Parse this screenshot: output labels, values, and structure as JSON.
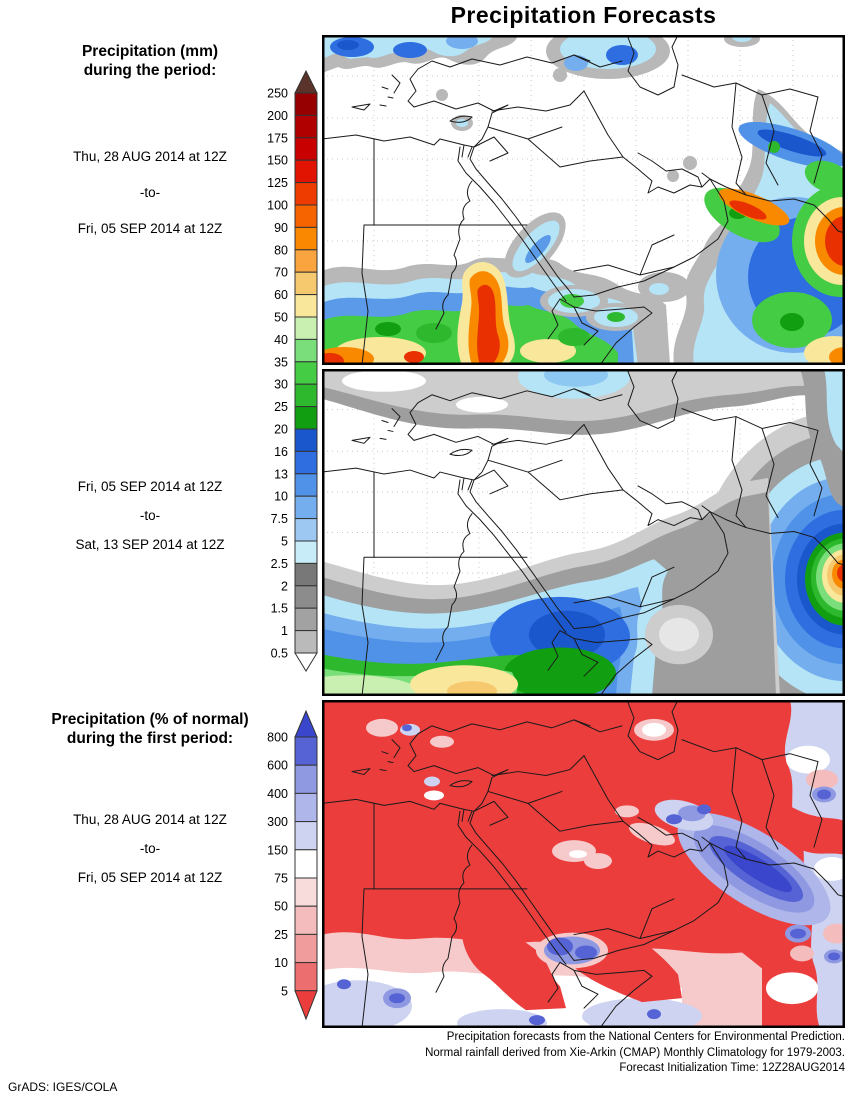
{
  "title": "Precipitation Forecasts",
  "panel_mm": {
    "heading_line1": "Precipitation (mm)",
    "heading_line2": "during the period:",
    "period1": {
      "start": "Thu, 28 AUG 2014 at 12Z",
      "sep": "-to-",
      "end": "Fri, 05 SEP 2014 at 12Z"
    },
    "period2": {
      "start": "Fri, 05 SEP 2014 at 12Z",
      "sep": "-to-",
      "end": "Sat, 13 SEP 2014 at 12Z"
    }
  },
  "panel_pct": {
    "heading_line1": "Precipitation (% of normal)",
    "heading_line2": "during the first period:",
    "period": {
      "start": "Thu, 28 AUG 2014 at 12Z",
      "sep": "-to-",
      "end": "Fri, 05 SEP 2014 at 12Z"
    }
  },
  "legend_mm": {
    "labels": [
      "250",
      "200",
      "175",
      "150",
      "125",
      "100",
      "90",
      "80",
      "70",
      "60",
      "50",
      "40",
      "35",
      "30",
      "25",
      "20",
      "16",
      "13",
      "10",
      "7.5",
      "5",
      "2.5",
      "2",
      "1.5",
      "1",
      "0.5"
    ],
    "colors": [
      "#960000",
      "#b00000",
      "#c80000",
      "#e01400",
      "#ee3c00",
      "#f66400",
      "#fa8800",
      "#f9a43e",
      "#f7c96e",
      "#f9e79b",
      "#c9f0b0",
      "#7ade7a",
      "#44cc44",
      "#2db82d",
      "#119f11",
      "#1a56cc",
      "#2e6ee0",
      "#4f92e8",
      "#74aeee",
      "#9cc8f2",
      "#c8ecf8",
      "#787878",
      "#8c8c8c",
      "#a2a2a2",
      "#bababa"
    ],
    "arrow_top_color": "#5a332b",
    "arrow_bottom_color": "#ffffff"
  },
  "legend_pct": {
    "labels": [
      "800",
      "600",
      "400",
      "300",
      "150",
      "75",
      "50",
      "25",
      "10",
      "5"
    ],
    "colors": [
      "#5663d4",
      "#8f99e2",
      "#aeb6ea",
      "#cdd3f0",
      "#ffffff",
      "#f8dcdc",
      "#f4bcbc",
      "#f09c9c",
      "#ec6e6e"
    ],
    "arrow_top_color": "#3a46cc",
    "arrow_bottom_color": "#ec3d3d"
  },
  "footer": {
    "line1": "Precipitation forecasts from the National Centers for Environmental Prediction.",
    "line2": "Normal rainfall derived from Xie-Arkin (CMAP) Monthly Climatology for 1979-2003.",
    "line3": "Forecast Initialization Time: 12Z28AUG2014",
    "credit": "GrADS: IGES/COLA"
  },
  "chart_data": [
    {
      "type": "heatmap",
      "title": "Precipitation (mm) during the period",
      "period": "Thu, 28 AUG 2014 at 12Z to Fri, 05 SEP 2014 at 12Z",
      "units": "mm",
      "scale_levels": [
        0.5,
        1,
        1.5,
        2,
        2.5,
        5,
        7.5,
        10,
        13,
        16,
        20,
        25,
        30,
        35,
        40,
        50,
        60,
        70,
        80,
        90,
        100,
        125,
        150,
        175,
        200,
        250
      ],
      "legend_position": "left",
      "notes": "Shaded contour map; heavy rain (orange/red >100 mm) along southern edge and a north-reaching tongue near the southern Red Sea; large blue/green/orange system with red cores at the eastern edge; scattered blue showers along the northern (Black Sea) edge; dry white interior with gray 0.5-2.5 mm fringes."
    },
    {
      "type": "heatmap",
      "title": "Precipitation (mm) during the period",
      "period": "Fri, 05 SEP 2014 at 12Z to Sat, 13 SEP 2014 at 12Z",
      "units": "mm",
      "scale_levels": [
        0.5,
        1,
        1.5,
        2,
        2.5,
        5,
        7.5,
        10,
        13,
        16,
        20,
        25,
        30,
        35,
        40,
        50,
        60,
        70,
        80,
        90,
        100,
        125,
        150,
        175,
        200,
        250
      ],
      "legend_position": "left",
      "notes": "Smoother contour bands: gray band across the north, white dry interior, broad blue/green area in the south with a pale-yellow core, dark-blue maximum south of the peninsula, and a concentric blue-green-yellow-orange-red bullseye at the eastern edge."
    },
    {
      "type": "heatmap",
      "title": "Precipitation (% of normal) during the first period",
      "period": "Thu, 28 AUG 2014 at 12Z to Fri, 05 SEP 2014 at 12Z",
      "units": "% of normal",
      "scale_levels": [
        5,
        10,
        25,
        50,
        75,
        150,
        300,
        400,
        600,
        800
      ],
      "legend_position": "left",
      "notes": "Region dominated by red (below 5% of normal); blue/purple above-normal diagonal streak over the Arabian Sea coast, lavender and white patches along the eastern edge and southern margin with small purple above-normal spots."
    }
  ]
}
